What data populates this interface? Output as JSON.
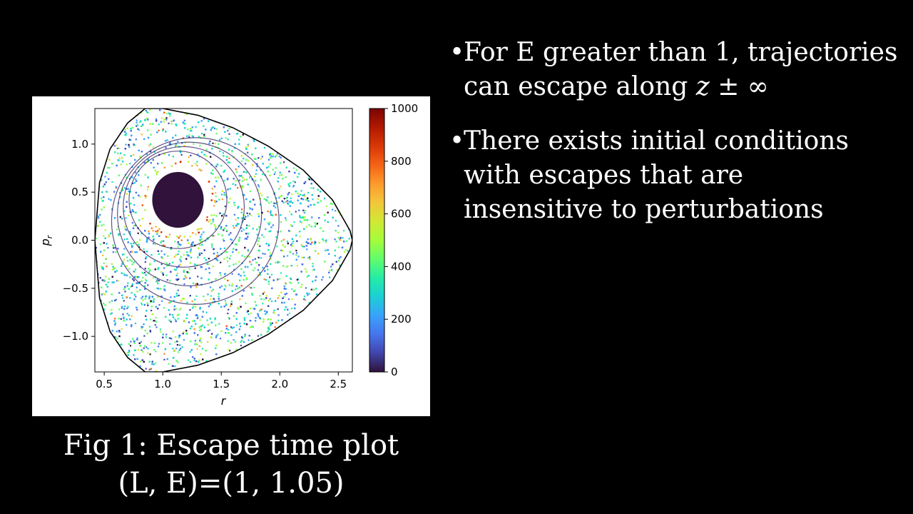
{
  "slide": {
    "bullets": [
      {
        "lines": [
          "For E greater than 1, trajectories",
          "can escape along "
        ],
        "math_suffix": "z ± ∞"
      },
      {
        "lines": [
          "There exists initial conditions",
          "with escapes that are",
          "insensitive to perturbations"
        ],
        "math_suffix": ""
      }
    ],
    "caption": {
      "line1": "Fig 1: Escape time plot",
      "line2": "(L, E)=(1, 1.05)"
    }
  },
  "chart_data": {
    "type": "heatmap",
    "title": "",
    "xlabel": "r",
    "ylabel": "p_r",
    "xlim": [
      0.42,
      2.62
    ],
    "ylim": [
      -1.37,
      1.37
    ],
    "x_ticks": [
      0.5,
      1.0,
      1.5,
      2.0,
      2.5
    ],
    "x_tick_labels": [
      "0.5",
      "1.0",
      "1.5",
      "2.0",
      "2.5"
    ],
    "y_ticks": [
      1.0,
      0.5,
      0.0,
      -0.5,
      -1.0
    ],
    "y_tick_labels": [
      "1.0",
      "0.5",
      "0.0",
      "−0.5",
      "−1.0"
    ],
    "colorbar": {
      "min": 0,
      "max": 1000,
      "ticks": [
        1000,
        800,
        600,
        400,
        200,
        0
      ],
      "tick_labels": [
        "1000",
        "800",
        "600",
        "400",
        "200",
        "0"
      ],
      "colormap": "turbo",
      "colors": [
        "#30123b",
        "#4145ab",
        "#4675ed",
        "#39a2fc",
        "#1bcfd4",
        "#24eca6",
        "#61fc6c",
        "#a4fc3b",
        "#d1e834",
        "#f3c63a",
        "#fe9b2d",
        "#f36315",
        "#d93806",
        "#b11901",
        "#7a0403"
      ]
    },
    "boundary": {
      "description_of_region": "energy-accessible region in (r, p_r)",
      "points": [
        [
          0.42,
          0.0
        ],
        [
          0.46,
          0.6
        ],
        [
          0.55,
          0.95
        ],
        [
          0.7,
          1.22
        ],
        [
          0.85,
          1.37
        ],
        [
          1.0,
          1.37
        ],
        [
          1.3,
          1.3
        ],
        [
          1.6,
          1.17
        ],
        [
          1.9,
          0.98
        ],
        [
          2.2,
          0.73
        ],
        [
          2.45,
          0.42
        ],
        [
          2.6,
          0.1
        ],
        [
          2.62,
          0.0
        ],
        [
          2.6,
          -0.1
        ],
        [
          2.45,
          -0.42
        ],
        [
          2.2,
          -0.73
        ],
        [
          1.9,
          -0.98
        ],
        [
          1.6,
          -1.17
        ],
        [
          1.3,
          -1.3
        ],
        [
          1.0,
          -1.37
        ],
        [
          0.85,
          -1.37
        ],
        [
          0.7,
          -1.22
        ],
        [
          0.55,
          -0.95
        ],
        [
          0.46,
          -0.6
        ]
      ]
    },
    "regular_island": {
      "center_r": 1.13,
      "center_pr": 0.42,
      "half_width_r": 0.22,
      "half_height_pr": 0.29,
      "escape_time": 0
    },
    "dominant_escape_time_range": [
      100,
      500
    ],
    "legend": "none",
    "grid": false
  }
}
